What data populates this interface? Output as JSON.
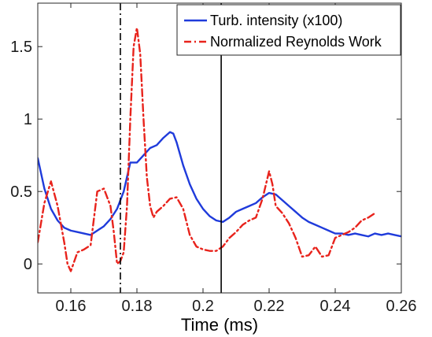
{
  "chart_data": {
    "type": "line",
    "title": "",
    "xlabel": "Time (ms)",
    "ylabel": "",
    "xlim": [
      0.15,
      0.26
    ],
    "ylim": [
      -0.2,
      1.8
    ],
    "x_ticks": [
      0.16,
      0.18,
      0.2,
      0.22,
      0.24,
      0.26
    ],
    "x_tick_labels": [
      "0.16",
      "0.18",
      "0.2",
      "0.22",
      "0.24",
      "0.26"
    ],
    "y_ticks": [
      0,
      0.5,
      1,
      1.5
    ],
    "y_tick_labels": [
      "0",
      "0.5",
      "1",
      "1.5"
    ],
    "grid": false,
    "legend_position": "top-right",
    "vertical_markers": [
      {
        "x": 0.175,
        "style": "dash-dot"
      },
      {
        "x": 0.2055,
        "style": "solid"
      }
    ],
    "series": [
      {
        "name": "Turb. intensity (x100)",
        "color": "#1f3bdb",
        "style": "solid",
        "x": [
          0.15,
          0.152,
          0.154,
          0.156,
          0.158,
          0.16,
          0.162,
          0.164,
          0.166,
          0.168,
          0.17,
          0.172,
          0.174,
          0.176,
          0.178,
          0.18,
          0.182,
          0.184,
          0.186,
          0.188,
          0.19,
          0.191,
          0.192,
          0.194,
          0.196,
          0.198,
          0.2,
          0.202,
          0.204,
          0.206,
          0.208,
          0.21,
          0.212,
          0.214,
          0.216,
          0.218,
          0.22,
          0.222,
          0.224,
          0.226,
          0.228,
          0.23,
          0.232,
          0.234,
          0.236,
          0.238,
          0.24,
          0.242,
          0.244,
          0.246,
          0.248,
          0.25,
          0.252,
          0.254,
          0.256,
          0.258,
          0.26
        ],
        "y": [
          0.73,
          0.52,
          0.38,
          0.3,
          0.25,
          0.23,
          0.22,
          0.21,
          0.2,
          0.23,
          0.26,
          0.31,
          0.38,
          0.5,
          0.7,
          0.7,
          0.75,
          0.8,
          0.82,
          0.87,
          0.91,
          0.9,
          0.84,
          0.68,
          0.55,
          0.45,
          0.38,
          0.33,
          0.3,
          0.29,
          0.32,
          0.36,
          0.38,
          0.4,
          0.42,
          0.46,
          0.49,
          0.48,
          0.44,
          0.4,
          0.36,
          0.32,
          0.29,
          0.27,
          0.25,
          0.23,
          0.21,
          0.21,
          0.2,
          0.21,
          0.2,
          0.19,
          0.21,
          0.2,
          0.21,
          0.2,
          0.19
        ]
      },
      {
        "name": "Normalized Reynolds Work",
        "color": "#e8231c",
        "style": "dash-dot",
        "x": [
          0.15,
          0.152,
          0.154,
          0.156,
          0.158,
          0.159,
          0.16,
          0.162,
          0.164,
          0.166,
          0.168,
          0.17,
          0.172,
          0.173,
          0.174,
          0.175,
          0.176,
          0.177,
          0.178,
          0.179,
          0.18,
          0.181,
          0.182,
          0.183,
          0.184,
          0.185,
          0.186,
          0.188,
          0.19,
          0.192,
          0.194,
          0.196,
          0.198,
          0.2,
          0.202,
          0.204,
          0.206,
          0.208,
          0.21,
          0.212,
          0.214,
          0.216,
          0.218,
          0.22,
          0.221,
          0.222,
          0.224,
          0.226,
          0.228,
          0.23,
          0.232,
          0.234,
          0.236,
          0.238,
          0.24,
          0.242,
          0.244,
          0.246,
          0.248,
          0.25,
          0.252
        ],
        "y": [
          0.15,
          0.42,
          0.57,
          0.4,
          0.15,
          0.0,
          -0.05,
          0.08,
          0.1,
          0.13,
          0.5,
          0.52,
          0.4,
          0.22,
          0.0,
          0.02,
          0.08,
          0.4,
          1.0,
          1.5,
          1.63,
          1.45,
          1.0,
          0.6,
          0.4,
          0.32,
          0.36,
          0.4,
          0.45,
          0.46,
          0.38,
          0.2,
          0.12,
          0.1,
          0.09,
          0.09,
          0.12,
          0.18,
          0.22,
          0.27,
          0.3,
          0.32,
          0.45,
          0.64,
          0.55,
          0.4,
          0.35,
          0.28,
          0.18,
          0.05,
          0.06,
          0.12,
          0.05,
          0.06,
          0.18,
          0.2,
          0.22,
          0.25,
          0.3,
          0.32,
          0.35
        ]
      }
    ]
  }
}
